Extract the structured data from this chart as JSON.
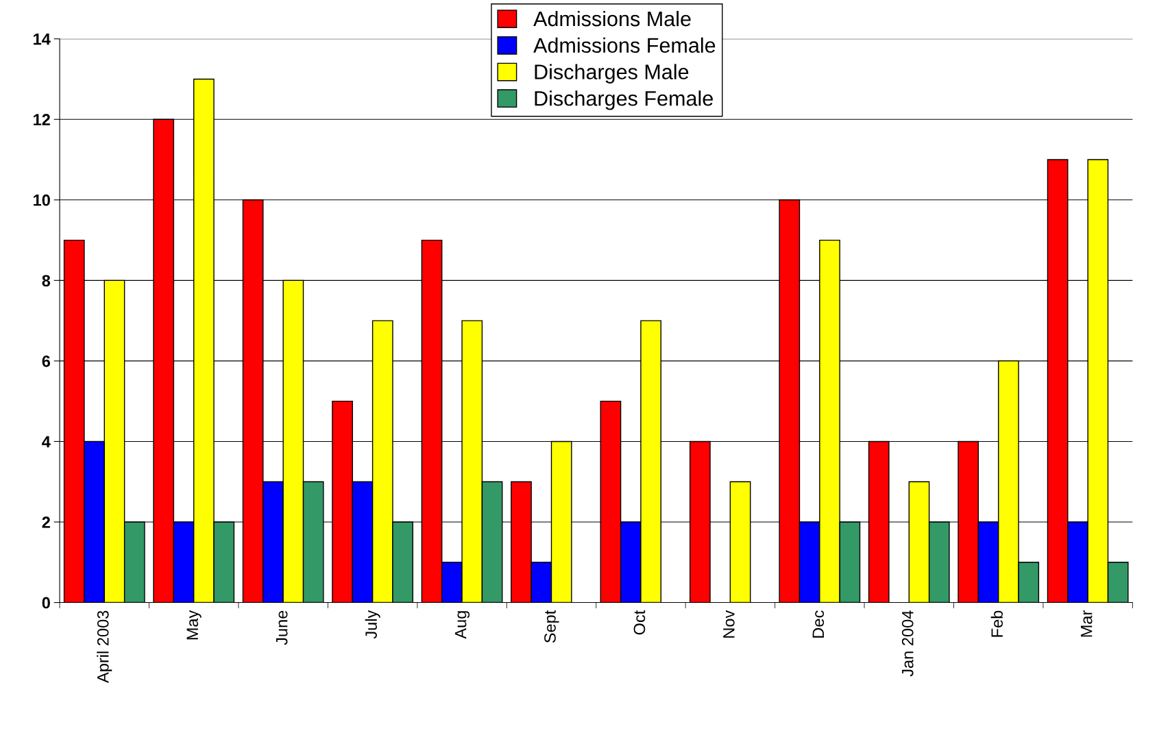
{
  "chart_data": {
    "type": "bar",
    "categories": [
      "April 2003",
      "May",
      "June",
      "July",
      "Aug",
      "Sept",
      "Oct",
      "Nov",
      "Dec",
      "Jan 2004",
      "Feb",
      "Mar"
    ],
    "series": [
      {
        "name": "Admissions Male",
        "color": "#ff0000",
        "values": [
          9,
          12,
          10,
          5,
          9,
          3,
          5,
          4,
          10,
          4,
          4,
          11
        ]
      },
      {
        "name": "Admissions Female",
        "color": "#0000ff",
        "values": [
          4,
          2,
          3,
          3,
          1,
          1,
          2,
          0,
          2,
          0,
          2,
          2
        ]
      },
      {
        "name": "Discharges Male",
        "color": "#ffff00",
        "values": [
          8,
          13,
          8,
          7,
          7,
          4,
          7,
          3,
          9,
          3,
          6,
          11
        ]
      },
      {
        "name": "Discharges Female",
        "color": "#339966",
        "values": [
          2,
          2,
          3,
          2,
          3,
          0,
          0,
          0,
          2,
          2,
          1,
          1
        ]
      }
    ],
    "ylim": [
      0,
      14
    ],
    "yticks": [
      0,
      2,
      4,
      6,
      8,
      10,
      12,
      14
    ],
    "grid": "y",
    "legend": "top"
  }
}
